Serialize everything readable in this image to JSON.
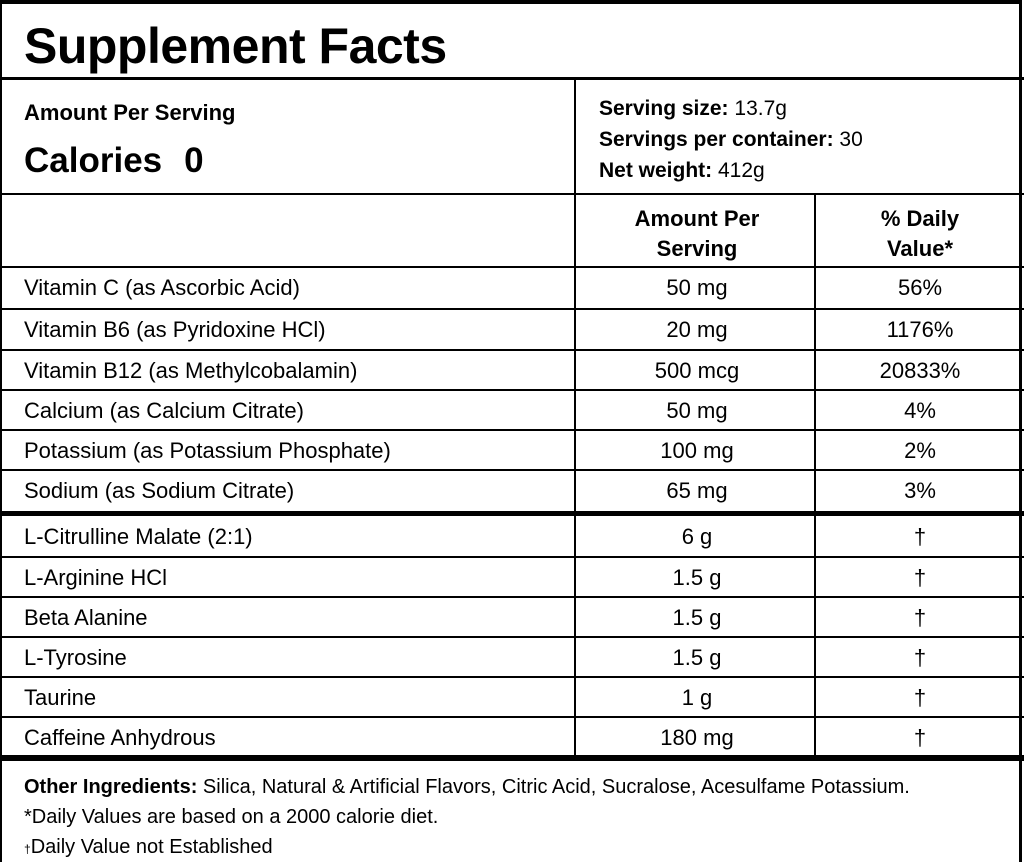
{
  "title": "Supplement Facts",
  "amount_per_serving": "Amount Per Serving",
  "calories_label": "Calories",
  "calories_value": "0",
  "serving": {
    "size_label": "Serving size:",
    "size_value": " 13.7g",
    "servings_label": "Servings per container:",
    "servings_value": " 30",
    "net_label": "Net weight:",
    "net_value": " 412g"
  },
  "columns": {
    "amount_line1": "Amount Per",
    "amount_line2": "Serving",
    "dv_line1": "% Daily",
    "dv_line2": "Value*"
  },
  "nutrients": [
    {
      "name": "Vitamin C (as Ascorbic Acid)",
      "amount": "50 mg",
      "dv": "56%"
    },
    {
      "name": "Vitamin B6 (as Pyridoxine HCl)",
      "amount": "20 mg",
      "dv": "1176%"
    },
    {
      "name": "Vitamin B12 (as Methylcobalamin)",
      "amount": "500 mcg",
      "dv": "20833%"
    },
    {
      "name": "Calcium (as Calcium Citrate)",
      "amount": "50 mg",
      "dv": "4%"
    },
    {
      "name": "Potassium (as Potassium Phosphate)",
      "amount": "100 mg",
      "dv": "2%"
    },
    {
      "name": "Sodium (as Sodium Citrate)",
      "amount": "65 mg",
      "dv": "3%"
    }
  ],
  "ingredients": [
    {
      "name": "L-Citrulline Malate (2:1)",
      "amount": "6 g",
      "dv": "†"
    },
    {
      "name": "L-Arginine HCl",
      "amount": "1.5 g",
      "dv": "†"
    },
    {
      "name": "Beta Alanine",
      "amount": "1.5 g",
      "dv": "†"
    },
    {
      "name": "L-Tyrosine",
      "amount": "1.5 g",
      "dv": "†"
    },
    {
      "name": "Taurine",
      "amount": "1 g",
      "dv": "†"
    },
    {
      "name": "Caffeine Anhydrous",
      "amount": "180 mg",
      "dv": "†"
    }
  ],
  "footer": {
    "other_label": "Other Ingredients:",
    "other_text": " Silica, Natural & Artificial Flavors, Citric Acid, Sucralose, Acesulfame Potassium.",
    "dv_note": "*Daily Values are based on a 2000 calorie diet.",
    "dagger": "†",
    "dagger_note": "Daily Value not Established"
  }
}
